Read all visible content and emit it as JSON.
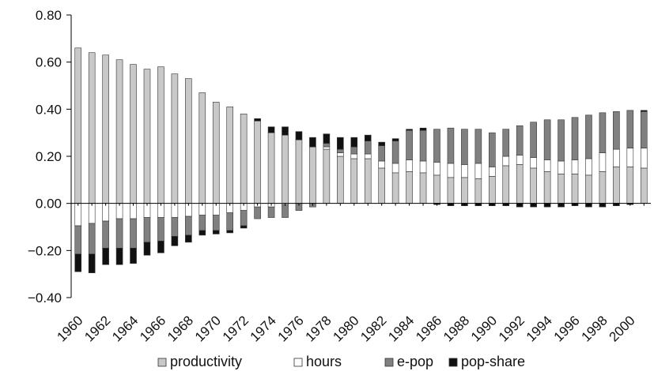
{
  "chart_data": {
    "type": "bar",
    "stacked": true,
    "title": "",
    "xlabel": "",
    "ylabel": "",
    "ylim": [
      -0.4,
      0.8
    ],
    "y_ticks": [
      "0.80",
      "0.60",
      "0.40",
      "0.20",
      "0.00",
      "−0.20",
      "−0.40"
    ],
    "y_tick_values": [
      0.8,
      0.6,
      0.4,
      0.2,
      0.0,
      -0.2,
      -0.4
    ],
    "x": [
      1960,
      1961,
      1962,
      1963,
      1964,
      1965,
      1966,
      1967,
      1968,
      1969,
      1970,
      1971,
      1972,
      1973,
      1974,
      1975,
      1976,
      1977,
      1978,
      1979,
      1980,
      1981,
      1982,
      1983,
      1984,
      1985,
      1986,
      1987,
      1988,
      1989,
      1990,
      1991,
      1992,
      1993,
      1994,
      1995,
      1996,
      1997,
      1998,
      1999,
      2000,
      2001
    ],
    "x_tick_labels": [
      "1960",
      "1962",
      "1964",
      "1966",
      "1968",
      "1970",
      "1972",
      "1974",
      "1976",
      "1978",
      "1980",
      "1982",
      "1984",
      "1986",
      "1988",
      "1990",
      "1992",
      "1994",
      "1996",
      "1998",
      "2000"
    ],
    "x_tick_label_years": [
      1960,
      1962,
      1964,
      1966,
      1968,
      1970,
      1972,
      1974,
      1976,
      1978,
      1980,
      1982,
      1984,
      1986,
      1988,
      1990,
      1992,
      1994,
      1996,
      1998,
      2000
    ],
    "grid": false,
    "legend_position": "bottom",
    "series": [
      {
        "name": "productivity",
        "color": "#c8c8c8",
        "values": [
          0.66,
          0.64,
          0.63,
          0.61,
          0.59,
          0.57,
          0.58,
          0.55,
          0.53,
          0.47,
          0.43,
          0.41,
          0.38,
          0.35,
          0.3,
          0.29,
          0.27,
          0.24,
          0.23,
          0.2,
          0.19,
          0.19,
          0.15,
          0.13,
          0.135,
          0.13,
          0.12,
          0.11,
          0.11,
          0.105,
          0.115,
          0.16,
          0.165,
          0.15,
          0.135,
          0.125,
          0.125,
          0.12,
          0.135,
          0.155,
          0.155,
          0.15
        ]
      },
      {
        "name": "hours",
        "color": "#ffffff",
        "values": [
          -0.095,
          -0.085,
          -0.075,
          -0.065,
          -0.065,
          -0.06,
          -0.06,
          -0.06,
          -0.055,
          -0.05,
          -0.05,
          -0.04,
          -0.03,
          -0.015,
          -0.015,
          -0.005,
          0.0,
          0.0,
          0.01,
          0.015,
          0.02,
          0.02,
          0.03,
          0.04,
          0.05,
          0.05,
          0.055,
          0.06,
          0.055,
          0.065,
          0.04,
          0.04,
          0.04,
          0.045,
          0.05,
          0.055,
          0.06,
          0.07,
          0.08,
          0.075,
          0.08,
          0.085
        ]
      },
      {
        "name": "e-pop",
        "color": "#808080",
        "values": [
          -0.12,
          -0.13,
          -0.115,
          -0.125,
          -0.125,
          -0.105,
          -0.1,
          -0.08,
          -0.08,
          -0.065,
          -0.065,
          -0.075,
          -0.065,
          -0.05,
          -0.045,
          -0.055,
          -0.03,
          -0.015,
          0.015,
          0.015,
          0.03,
          0.055,
          0.065,
          0.095,
          0.125,
          0.13,
          0.14,
          0.15,
          0.15,
          0.145,
          0.145,
          0.115,
          0.125,
          0.15,
          0.17,
          0.175,
          0.18,
          0.185,
          0.17,
          0.16,
          0.16,
          0.155
        ]
      },
      {
        "name": "pop-share",
        "color": "#111111",
        "values": [
          -0.075,
          -0.08,
          -0.07,
          -0.07,
          -0.065,
          -0.055,
          -0.05,
          -0.04,
          -0.03,
          -0.02,
          -0.015,
          -0.01,
          -0.01,
          0.01,
          0.025,
          0.035,
          0.035,
          0.04,
          0.04,
          0.05,
          0.04,
          0.025,
          0.015,
          0.01,
          0.005,
          0.01,
          -0.005,
          -0.01,
          -0.01,
          -0.01,
          -0.01,
          -0.01,
          -0.015,
          -0.015,
          -0.015,
          -0.015,
          -0.01,
          -0.015,
          -0.015,
          -0.01,
          -0.005,
          0.005
        ]
      }
    ]
  }
}
